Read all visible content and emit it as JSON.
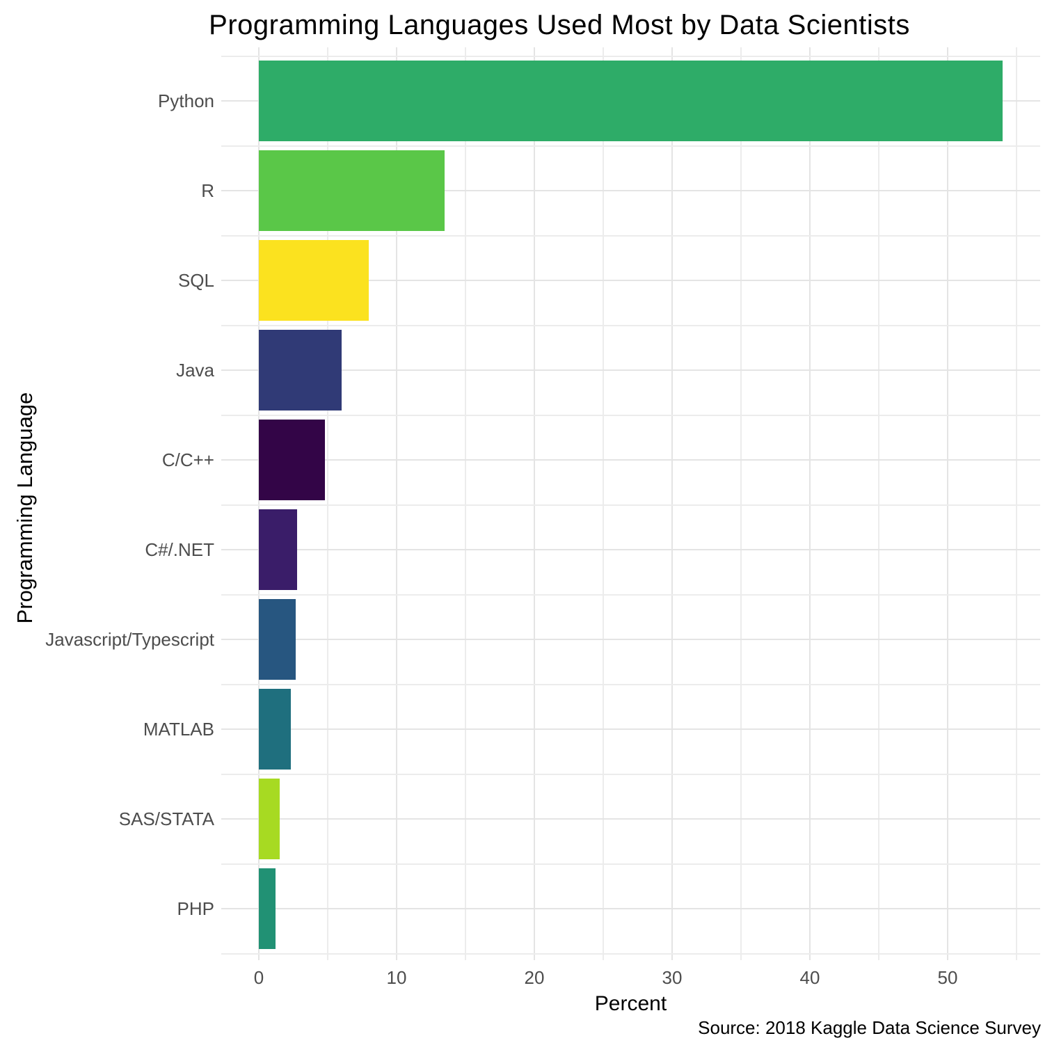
{
  "chart_data": {
    "type": "bar",
    "orientation": "horizontal",
    "title": "Programming Languages Used Most by Data Scientists",
    "xlabel": "Percent",
    "ylabel": "Programming Language",
    "caption": "Source: 2018 Kaggle Data Science Survey",
    "categories": [
      "Python",
      "R",
      "SQL",
      "Java",
      "C/C++",
      "C#/.NET",
      "Javascript/Typescript",
      "MATLAB",
      "SAS/STATA",
      "PHP"
    ],
    "values": [
      54.0,
      13.5,
      8.0,
      6.0,
      4.8,
      2.8,
      2.7,
      2.3,
      1.5,
      1.2
    ],
    "bar_colors": [
      "#2eac68",
      "#5ac748",
      "#fbe21f",
      "#303a76",
      "#330547",
      "#3a1d69",
      "#275680",
      "#1f6f7e",
      "#a7da22",
      "#219174"
    ],
    "x_ticks": [
      0,
      10,
      20,
      30,
      40,
      50
    ],
    "x_gridline_step": 5,
    "xlim": [
      0,
      56.7
    ],
    "grid": "on",
    "legend": "none",
    "colors": {
      "background": "#ffffff",
      "grid_major": "#e4e4e4",
      "grid_minor": "#ececec",
      "tick_label_color": "#4d4d4d",
      "title_color": "#000000"
    }
  }
}
